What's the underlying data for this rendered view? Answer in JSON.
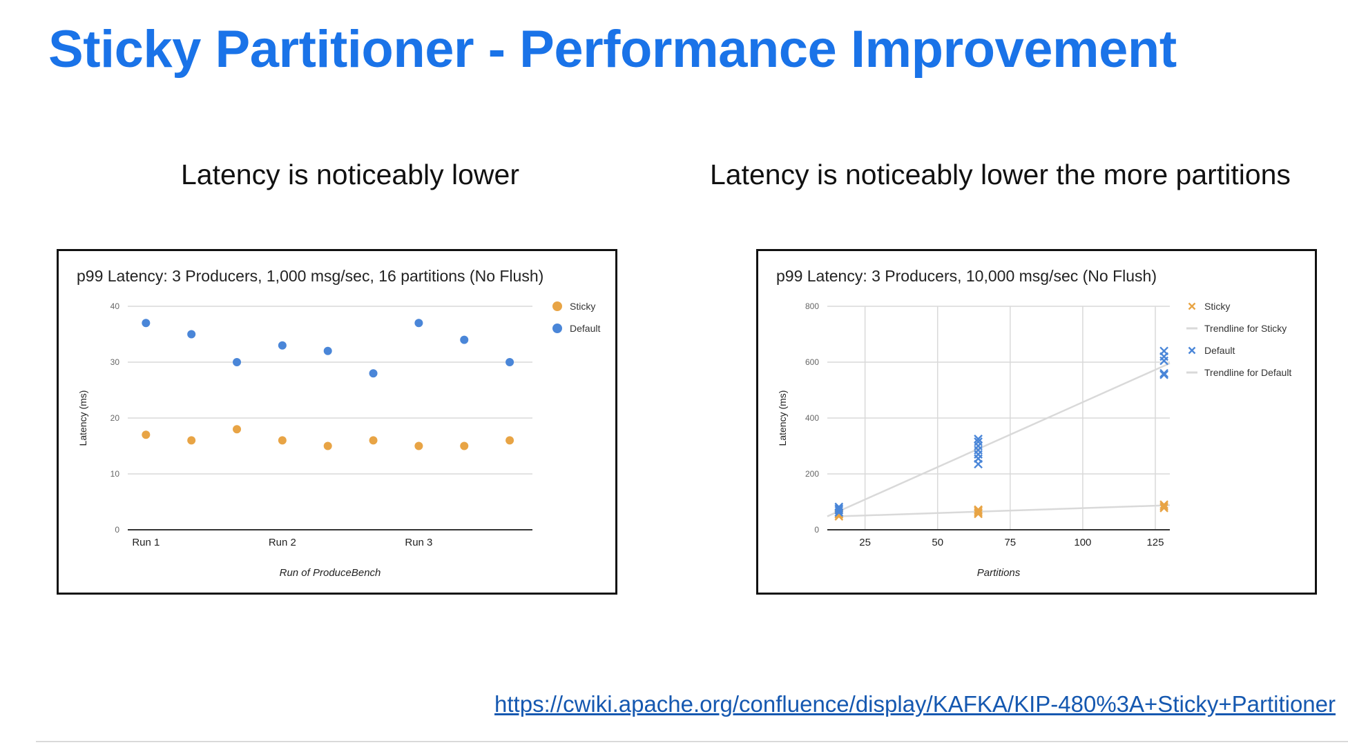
{
  "slide": {
    "title": "Sticky Partitioner - Performance Improvement",
    "subtitle_left": "Latency is noticeably lower",
    "subtitle_right": "Latency is noticeably lower the more partitions",
    "link": "https://cwiki.apache.org/confluence/display/KAFKA/KIP-480%3A+Sticky+Partitioner"
  },
  "colors": {
    "title": "#1a73e8",
    "sticky": "#e8a445",
    "default": "#4a86d8",
    "trendline": "#d9d9d9",
    "grid": "#d9d9d9",
    "link": "#1558b0"
  },
  "chart_data": [
    {
      "type": "scatter",
      "title": "p99 Latency: 3 Producers, 1,000 msg/sec, 16 partitions (No Flush)",
      "xlabel": "Run of ProduceBench",
      "ylabel": "Latency (ms)",
      "ylim": [
        0,
        40
      ],
      "yticks": [
        0,
        10,
        20,
        30,
        40
      ],
      "x_tick_labels": [
        {
          "label": "Run 1",
          "at": 1
        },
        {
          "label": "Run 2",
          "at": 4
        },
        {
          "label": "Run 3",
          "at": 7
        }
      ],
      "x": [
        1,
        2,
        3,
        4,
        5,
        6,
        7,
        8,
        9
      ],
      "xlim": [
        0.6,
        9.5
      ],
      "grid": true,
      "legend_position": "right",
      "series": [
        {
          "name": "Sticky",
          "marker": "circle",
          "color": "#e8a445",
          "values": [
            17,
            16,
            18,
            16,
            15,
            16,
            15,
            15,
            16
          ]
        },
        {
          "name": "Default",
          "marker": "circle",
          "color": "#4a86d8",
          "values": [
            37,
            35,
            30,
            33,
            32,
            28,
            37,
            34,
            30
          ]
        }
      ]
    },
    {
      "type": "scatter",
      "title": "p99 Latency: 3 Producers, 10,000 msg/sec (No Flush)",
      "xlabel": "Partitions",
      "ylabel": "Latency (ms)",
      "ylim": [
        0,
        800
      ],
      "yticks": [
        0,
        200,
        400,
        600,
        800
      ],
      "xlim": [
        12,
        130
      ],
      "xticks": [
        25,
        50,
        75,
        100,
        125
      ],
      "grid": true,
      "legend_position": "right",
      "legend_order": [
        "Sticky",
        "Trendline for Sticky",
        "Default",
        "Trendline for Default"
      ],
      "series": [
        {
          "name": "Sticky",
          "marker": "x",
          "color": "#e8a445",
          "points": [
            [
              16,
              48
            ],
            [
              16,
              55
            ],
            [
              16,
              58
            ],
            [
              64,
              57
            ],
            [
              64,
              62
            ],
            [
              64,
              68
            ],
            [
              64,
              72
            ],
            [
              128,
              78
            ],
            [
              128,
              84
            ],
            [
              128,
              90
            ]
          ]
        },
        {
          "name": "Default",
          "marker": "x",
          "color": "#4a86d8",
          "points": [
            [
              16,
              62
            ],
            [
              16,
              70
            ],
            [
              16,
              76
            ],
            [
              16,
              82
            ],
            [
              64,
              235
            ],
            [
              64,
              255
            ],
            [
              64,
              270
            ],
            [
              64,
              285
            ],
            [
              64,
              300
            ],
            [
              64,
              315
            ],
            [
              64,
              325
            ],
            [
              128,
              555
            ],
            [
              128,
              560
            ],
            [
              128,
              605
            ],
            [
              128,
              620
            ],
            [
              128,
              640
            ]
          ]
        }
      ],
      "trendlines": [
        {
          "name": "Trendline for Sticky",
          "color": "#d9d9d9",
          "from": [
            16,
            48
          ],
          "to": [
            130,
            88
          ]
        },
        {
          "name": "Trendline for Default",
          "color": "#d9d9d9",
          "from": [
            12,
            48
          ],
          "to": [
            130,
            596
          ]
        }
      ]
    }
  ]
}
